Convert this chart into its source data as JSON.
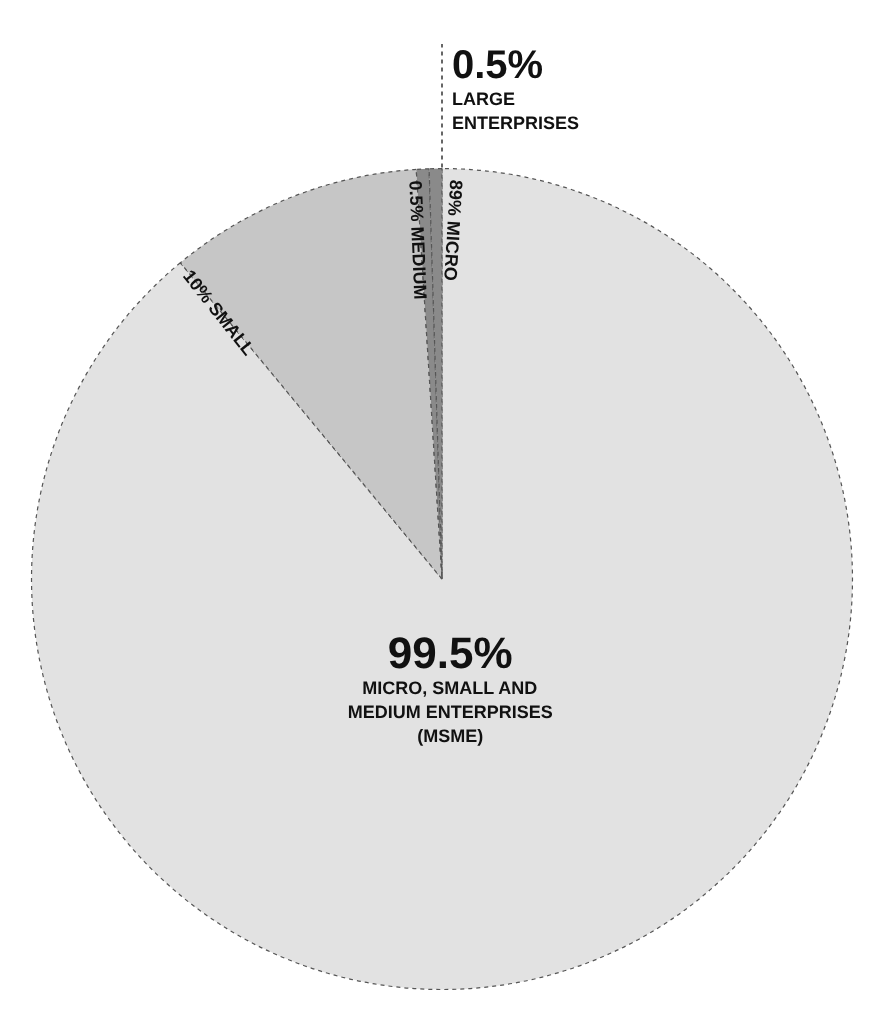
{
  "chart_data": {
    "type": "pie",
    "categories": [
      "MICRO",
      "SMALL",
      "MEDIUM",
      "LARGE ENTERPRISES"
    ],
    "values": [
      89,
      10,
      0.5,
      0.5
    ],
    "value_labels": [
      "89%",
      "10%",
      "0.5%",
      "0.5%"
    ],
    "colors": [
      "#e2e2e2",
      "#c6c6c6",
      "#8a8a8a",
      "#8a8a8a"
    ],
    "annotations": [
      "99.5%",
      "MICRO, SMALL AND MEDIUM ENTERPRISES (MSME)"
    ]
  }
}
